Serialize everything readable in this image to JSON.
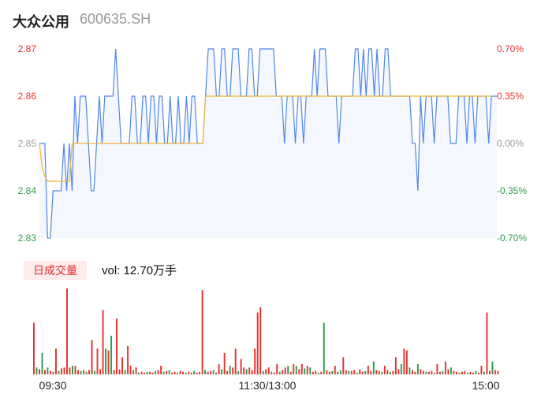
{
  "header": {
    "name": "大众公用",
    "code": "600635.SH"
  },
  "volume_panel": {
    "badge": "日成交量",
    "label": "vol: 12.70万手"
  },
  "colors": {
    "up": "#e8312f",
    "down": "#2a9d4a",
    "neutral": "#999999",
    "price_line": "#4f86e8",
    "avg_line": "#f0b437",
    "area_fill": "#f4f7fd"
  },
  "chart_data": [
    {
      "type": "line",
      "title": "",
      "ylim": [
        2.83,
        2.87
      ],
      "y_ticks": [
        "2.87",
        "2.86",
        "2.85",
        "2.84",
        "2.83"
      ],
      "pct_ticks": [
        "0.70%",
        "0.35%",
        "0.00%",
        "-0.35%",
        "-0.70%"
      ],
      "x_ticks": [
        "09:30",
        "11:30/13:00",
        "15:00"
      ],
      "series": [
        {
          "values": [
            2.85,
            2.85,
            2.85,
            2.83,
            2.83,
            2.84,
            2.84,
            2.84,
            2.84,
            2.85,
            2.84,
            2.85,
            2.84,
            2.86,
            2.85,
            2.86,
            2.86,
            2.86,
            2.85,
            2.84,
            2.84,
            2.85,
            2.86,
            2.85,
            2.86,
            2.86,
            2.86,
            2.86,
            2.87,
            2.86,
            2.85,
            2.85,
            2.85,
            2.85,
            2.86,
            2.86,
            2.85,
            2.85,
            2.86,
            2.86,
            2.85,
            2.86,
            2.86,
            2.85,
            2.86,
            2.86,
            2.85,
            2.85,
            2.86,
            2.85,
            2.85,
            2.86,
            2.85,
            2.85,
            2.86,
            2.85,
            2.86,
            2.86,
            2.85,
            2.85,
            2.85,
            2.86,
            2.87,
            2.87,
            2.87,
            2.86,
            2.86,
            2.87,
            2.87,
            2.86,
            2.86,
            2.87,
            2.87,
            2.87,
            2.86,
            2.86,
            2.86,
            2.87,
            2.87,
            2.86,
            2.86,
            2.87,
            2.87,
            2.87,
            2.87,
            2.87,
            2.87,
            2.86,
            2.86,
            2.86,
            2.85,
            2.86,
            2.86,
            2.86,
            2.85,
            2.86,
            2.86,
            2.85,
            2.86,
            2.86,
            2.86,
            2.87,
            2.86,
            2.87,
            2.87,
            2.87,
            2.86,
            2.86,
            2.86,
            2.86,
            2.85,
            2.86,
            2.86,
            2.86,
            2.86,
            2.86,
            2.87,
            2.87,
            2.86,
            2.87,
            2.86,
            2.87,
            2.87,
            2.86,
            2.87,
            2.86,
            2.86,
            2.87,
            2.87,
            2.86,
            2.86,
            2.86,
            2.86,
            2.86,
            2.86,
            2.86,
            2.86,
            2.85,
            2.85,
            2.84,
            2.86,
            2.85,
            2.86,
            2.86,
            2.86,
            2.85,
            2.86,
            2.86,
            2.86,
            2.86,
            2.86,
            2.85,
            2.85,
            2.85,
            2.86,
            2.86,
            2.86,
            2.85,
            2.86,
            2.86,
            2.85,
            2.86,
            2.86,
            2.86,
            2.86,
            2.85,
            2.86,
            2.86,
            2.86
          ]
        },
        {
          "values": [
            2.85,
            2.845,
            2.843,
            2.842,
            2.842,
            2.842,
            2.842,
            2.842,
            2.842,
            2.842,
            2.842,
            2.842,
            2.85,
            2.85,
            2.85,
            2.85,
            2.85,
            2.85,
            2.85,
            2.85,
            2.85,
            2.85,
            2.85,
            2.85,
            2.85,
            2.85,
            2.85,
            2.85,
            2.85,
            2.85,
            2.85,
            2.85,
            2.85,
            2.85,
            2.85,
            2.85,
            2.85,
            2.85,
            2.85,
            2.85,
            2.85,
            2.85,
            2.85,
            2.85,
            2.85,
            2.85,
            2.85,
            2.85,
            2.85,
            2.85,
            2.85,
            2.85,
            2.85,
            2.85,
            2.85,
            2.85,
            2.85,
            2.85,
            2.85,
            2.85,
            2.85,
            2.86,
            2.86,
            2.86,
            2.86,
            2.86,
            2.86,
            2.86,
            2.86,
            2.86,
            2.86,
            2.86,
            2.86,
            2.86,
            2.86,
            2.86,
            2.86,
            2.86,
            2.86,
            2.86,
            2.86,
            2.86,
            2.86,
            2.86,
            2.86,
            2.86,
            2.86,
            2.86,
            2.86,
            2.86,
            2.86,
            2.86,
            2.86,
            2.86,
            2.86,
            2.86,
            2.86,
            2.86,
            2.86,
            2.86,
            2.86,
            2.86,
            2.86,
            2.86,
            2.86,
            2.86,
            2.86,
            2.86,
            2.86,
            2.86,
            2.86,
            2.86,
            2.86,
            2.86,
            2.86,
            2.86,
            2.86,
            2.86,
            2.86,
            2.86,
            2.86,
            2.86,
            2.86,
            2.86,
            2.86,
            2.86,
            2.86,
            2.86,
            2.86,
            2.86,
            2.86,
            2.86,
            2.86,
            2.86,
            2.86,
            2.86,
            2.86,
            2.86,
            2.86,
            2.86,
            2.86,
            2.86,
            2.86,
            2.86,
            2.86,
            2.86,
            2.86,
            2.86,
            2.86,
            2.86,
            2.86,
            2.86,
            2.86,
            2.86,
            2.86,
            2.86,
            2.86,
            2.86,
            2.86,
            2.86,
            2.86,
            2.86,
            2.86,
            2.86,
            2.86,
            2.86,
            2.86
          ]
        }
      ]
    },
    {
      "type": "bar",
      "title": "",
      "values": [
        0.6,
        0.08,
        0.06,
        0.25,
        0.05,
        0.08,
        0.04,
        0.03,
        0.3,
        0.04,
        0.07,
        0.08,
        1.0,
        0.08,
        0.1,
        0.1,
        0.05,
        0.04,
        0.05,
        0.03,
        0.05,
        0.4,
        0.04,
        0.3,
        0.06,
        0.75,
        0.3,
        0.28,
        0.45,
        0.05,
        0.65,
        0.06,
        0.2,
        0.05,
        0.33,
        0.1,
        0.05,
        0.08,
        0.02,
        0.03,
        0.02,
        0.03,
        0.03,
        0.02,
        0.04,
        0.05,
        0.1,
        0.03,
        0.04,
        0.05,
        0.02,
        0.03,
        0.02,
        0.04,
        0.03,
        0.02,
        0.03,
        0.02,
        0.04,
        0.02,
        0.03,
        0.98,
        0.05,
        0.03,
        0.04,
        0.05,
        0.02,
        0.12,
        0.06,
        0.25,
        0.04,
        0.1,
        0.08,
        0.3,
        0.04,
        0.18,
        0.08,
        0.06,
        0.08,
        0.05,
        0.3,
        0.72,
        0.78,
        0.04,
        0.06,
        0.08,
        0.03,
        0.02,
        0.12,
        0.03,
        0.05,
        0.08,
        0.1,
        0.03,
        0.12,
        0.1,
        0.06,
        0.12,
        0.07,
        0.1,
        0.08,
        0.03,
        0.04,
        0.02,
        0.03,
        0.6,
        0.05,
        0.03,
        0.04,
        0.1,
        0.03,
        0.05,
        0.2,
        0.05,
        0.04,
        0.04,
        0.05,
        0.02,
        0.06,
        0.03,
        0.04,
        0.1,
        0.04,
        0.15,
        0.05,
        0.04,
        0.03,
        0.1,
        0.05,
        0.03,
        0.04,
        0.2,
        0.06,
        0.12,
        0.3,
        0.28,
        0.08,
        0.05,
        0.03,
        0.12,
        0.06,
        0.04,
        0.03,
        0.03,
        0.04,
        0.02,
        0.12,
        0.03,
        0.04,
        0.15,
        0.06,
        0.08,
        0.04,
        0.03,
        0.02,
        0.03,
        0.04,
        0.02,
        0.03,
        0.02,
        0.04,
        0.02,
        0.1,
        0.03,
        0.72,
        0.04,
        0.15,
        0.05,
        0.04
      ],
      "colors": [
        "up",
        "down",
        "up",
        "down",
        "up",
        "down",
        "up",
        "up",
        "up",
        "down",
        "up",
        "up",
        "up",
        "up",
        "down",
        "up",
        "up",
        "down",
        "up",
        "down",
        "up",
        "up",
        "down",
        "up",
        "up",
        "up",
        "down",
        "up",
        "down",
        "up",
        "up",
        "up",
        "up",
        "down",
        "up",
        "up",
        "down",
        "up",
        "down",
        "up",
        "up",
        "down",
        "up",
        "up",
        "down",
        "up",
        "up",
        "down",
        "up",
        "down",
        "up",
        "up",
        "down",
        "up",
        "up",
        "down",
        "up",
        "up",
        "down",
        "up",
        "up",
        "up",
        "down",
        "up",
        "up",
        "down",
        "up",
        "up",
        "down",
        "up",
        "up",
        "down",
        "up",
        "up",
        "down",
        "up",
        "up",
        "down",
        "up",
        "up",
        "up",
        "up",
        "up",
        "down",
        "up",
        "up",
        "down",
        "up",
        "up",
        "down",
        "up",
        "up",
        "down",
        "up",
        "up",
        "down",
        "up",
        "up",
        "down",
        "up",
        "down",
        "up",
        "up",
        "down",
        "up",
        "down",
        "up",
        "up",
        "down",
        "up",
        "up",
        "down",
        "up",
        "up",
        "down",
        "up",
        "up",
        "down",
        "up",
        "up",
        "down",
        "up",
        "up",
        "down",
        "up",
        "up",
        "down",
        "up",
        "up",
        "down",
        "up",
        "up",
        "up",
        "down",
        "up",
        "up",
        "down",
        "up",
        "up",
        "down",
        "up",
        "up",
        "down",
        "up",
        "up",
        "down",
        "up",
        "up",
        "down",
        "up",
        "up",
        "down",
        "up",
        "up",
        "down",
        "up",
        "up",
        "down",
        "up",
        "up",
        "down",
        "up",
        "up",
        "down",
        "up",
        "up",
        "down",
        "up",
        "up",
        "up",
        "up",
        "down"
      ]
    }
  ]
}
